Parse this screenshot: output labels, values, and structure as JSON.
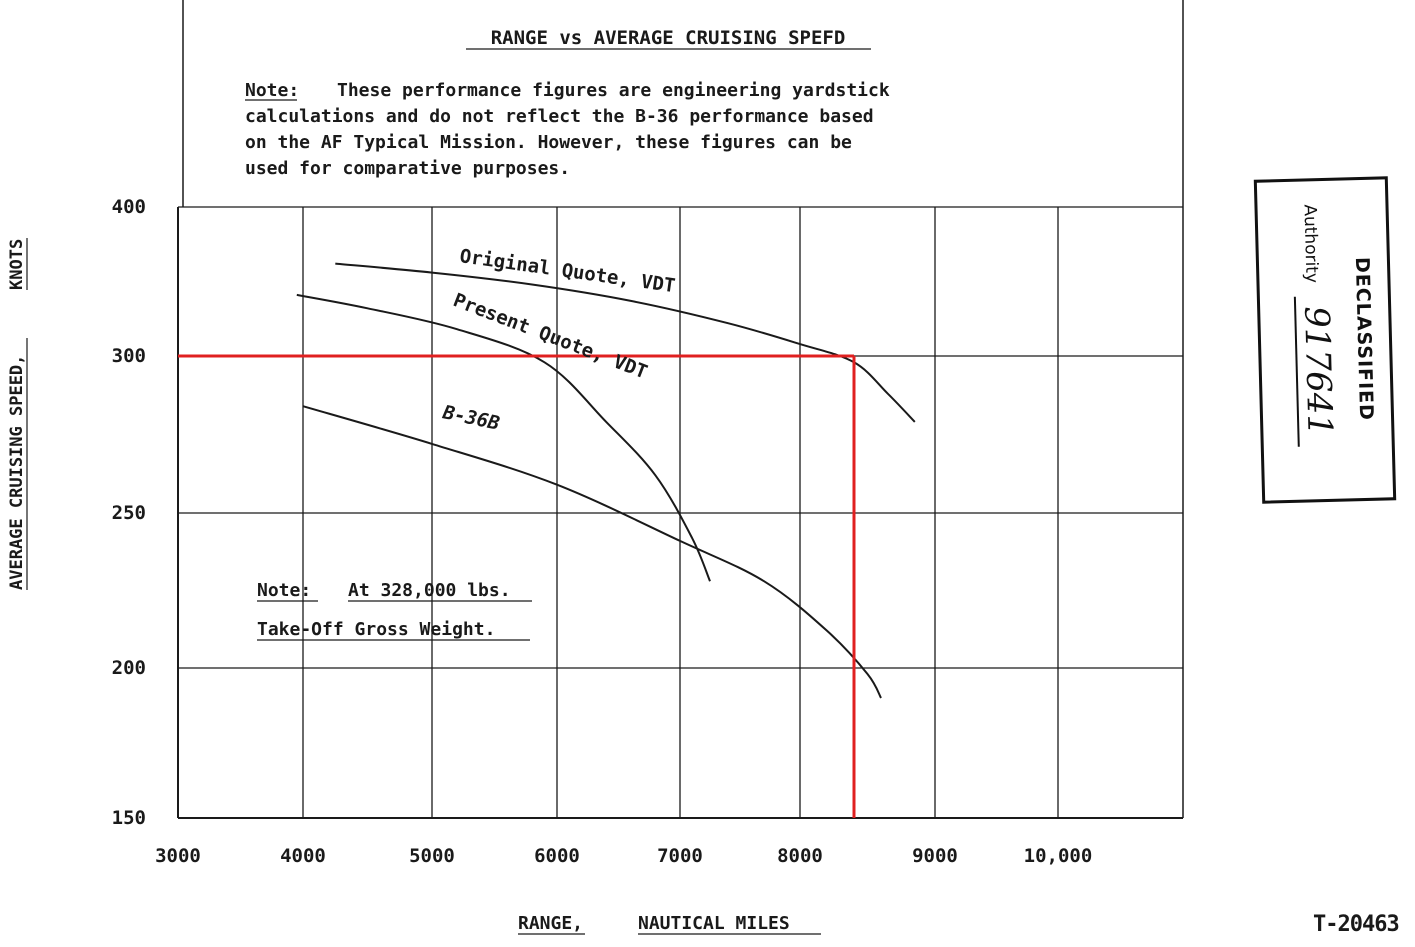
{
  "chart_data": {
    "type": "line",
    "title": "RANGE vs AVERAGE CRUISING SPEFD",
    "xlabel_main": "RANGE,",
    "xlabel_unit": "NAUTICAL MILES",
    "ylabel_main": "AVERAGE CRUISING SPEED,",
    "ylabel_unit": "KNOTS",
    "xlim": [
      3000,
      11000
    ],
    "ylim": [
      150,
      400
    ],
    "x_ticks": [
      3000,
      4000,
      5000,
      6000,
      7000,
      8000,
      9000,
      10000
    ],
    "x_tick_labels": [
      "3000",
      "4000",
      "5000",
      "6000",
      "7000",
      "8000",
      "9000",
      "10,000"
    ],
    "y_ticks": [
      150,
      200,
      250,
      300,
      400
    ],
    "y_tick_labels": [
      "150",
      "200",
      "250",
      "300",
      "400"
    ],
    "grid": true,
    "series": [
      {
        "name": "Original Quote, VDT",
        "x": [
          4250,
          5000,
          5800,
          6600,
          7400,
          8000,
          8400,
          8650,
          8850
        ],
        "y": [
          362,
          356,
          348,
          337,
          322,
          308,
          298,
          288,
          279
        ]
      },
      {
        "name": "Present Quote, VDT",
        "x": [
          3950,
          4500,
          5200,
          5900,
          6400,
          6800,
          7100,
          7250
        ],
        "y": [
          341,
          332,
          318,
          298,
          279,
          262,
          242,
          228
        ]
      },
      {
        "name": "B-36B",
        "x": [
          4000,
          5000,
          6000,
          7000,
          7700,
          8200,
          8500,
          8600
        ],
        "y": [
          284,
          272,
          259,
          241,
          228,
          212,
          198,
          190
        ]
      }
    ],
    "reference_line": {
      "x": 8400,
      "y": 300,
      "color": "#e02020"
    }
  },
  "note_top": {
    "label": "Note:",
    "lines": [
      "These performance figures are engineering yardstick",
      "calculations and do not reflect the B-36 performance based",
      "on the AF Typical Mission. However, these figures can be",
      "used for comparative purposes."
    ]
  },
  "note_bottom": {
    "label": "Note:",
    "line1": "At 328,000 lbs.",
    "line2": "Take-Off Gross Weight."
  },
  "stamp": {
    "title": "DECLASSIFIED",
    "authority_label": "Authority",
    "authority_number": "917641"
  },
  "document_number": "T-20463",
  "colors": {
    "ink": "#1a1a1a",
    "reference": "#e02020"
  }
}
